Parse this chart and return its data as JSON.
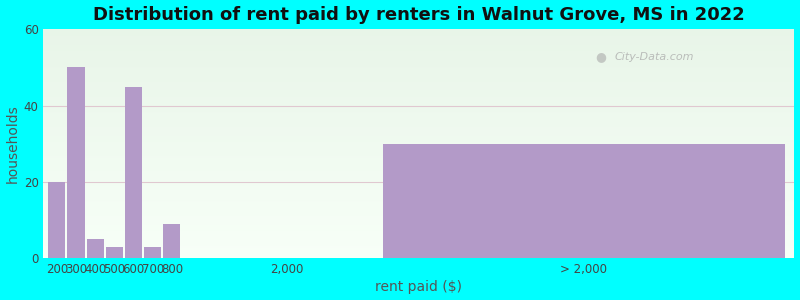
{
  "title": "Distribution of rent paid by renters in Walnut Grove, MS in 2022",
  "xlabel": "rent paid ($)",
  "ylabel": "households",
  "background_color": "#00ffff",
  "plot_bg_color_top": "#eaf4ea",
  "plot_bg_color_bottom": "#f8fff8",
  "bar_color": "#b39ac8",
  "grid_color": "#e0c8d0",
  "small_labels": [
    "200",
    "300",
    "400",
    "500",
    "600",
    "700",
    "800"
  ],
  "small_values": [
    20,
    50,
    5,
    3,
    45,
    3,
    9
  ],
  "gt2000_value": 30,
  "ylim": [
    0,
    60
  ],
  "yticks": [
    0,
    20,
    40,
    60
  ],
  "title_fontsize": 13,
  "axis_label_fontsize": 10,
  "tick_fontsize": 8.5,
  "watermark": "City-Data.com"
}
